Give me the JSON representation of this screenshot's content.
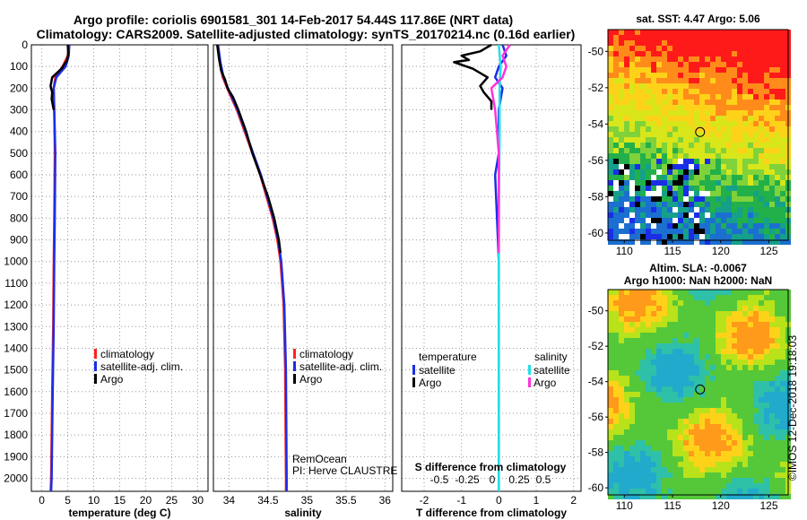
{
  "header": {
    "line1": "Argo profile: coriolis 6901581_301 14-Feb-2017 54.44S 117.86E (NRT data)",
    "line2": "Climatology: CARS2009. Satellite-adjusted climatology: synTS_20170214.nc (0.16d earlier)"
  },
  "colors": {
    "climatology": "#ff2020",
    "satellite": "#1a2ee8",
    "argo": "#000000",
    "sal_satellite": "#22e0e8",
    "sal_argo": "#ff33dd"
  },
  "chart_data": [
    {
      "type": "line",
      "title": "",
      "xlabel": "temperature (deg C)",
      "ylabel": "",
      "xlim": [
        -2,
        32
      ],
      "ylim": [
        2060,
        0
      ],
      "xticks": [
        0,
        5,
        10,
        15,
        20,
        25,
        30
      ],
      "yticks": [
        0,
        100,
        200,
        300,
        400,
        500,
        600,
        700,
        800,
        900,
        1000,
        1100,
        1200,
        1300,
        1400,
        1500,
        1600,
        1700,
        1800,
        1900,
        2000
      ],
      "legend": [
        "climatology",
        "satellite-adj. clim.",
        "Argo"
      ],
      "series": [
        {
          "name": "climatology",
          "color_key": "climatology",
          "points": [
            [
              5.2,
              0
            ],
            [
              5.0,
              50
            ],
            [
              4.0,
              100
            ],
            [
              2.6,
              150
            ],
            [
              2.3,
              200
            ],
            [
              2.4,
              300
            ],
            [
              2.5,
              500
            ],
            [
              2.4,
              800
            ],
            [
              2.3,
              1000
            ],
            [
              2.2,
              1300
            ],
            [
              2.0,
              1600
            ],
            [
              1.8,
              2000
            ],
            [
              1.7,
              2060
            ]
          ]
        },
        {
          "name": "satellite-adj. clim.",
          "color_key": "satellite",
          "points": [
            [
              5.3,
              0
            ],
            [
              5.2,
              50
            ],
            [
              4.6,
              100
            ],
            [
              2.8,
              150
            ],
            [
              2.3,
              200
            ],
            [
              2.4,
              300
            ],
            [
              2.6,
              500
            ],
            [
              2.5,
              800
            ],
            [
              2.4,
              1000
            ],
            [
              2.3,
              1300
            ],
            [
              2.1,
              1600
            ],
            [
              1.9,
              2000
            ],
            [
              1.8,
              2060
            ]
          ]
        },
        {
          "name": "Argo",
          "color_key": "argo",
          "points": [
            [
              5.0,
              0
            ],
            [
              5.1,
              40
            ],
            [
              4.9,
              70
            ],
            [
              3.8,
              110
            ],
            [
              2.0,
              150
            ],
            [
              1.7,
              190
            ],
            [
              2.0,
              220
            ],
            [
              1.9,
              250
            ],
            [
              2.3,
              300
            ]
          ]
        }
      ]
    },
    {
      "type": "line",
      "title": "",
      "xlabel": "salinity",
      "ylabel": "",
      "xlim": [
        33.8,
        36.1
      ],
      "ylim": [
        2060,
        0
      ],
      "xticks": [
        34,
        34.5,
        35,
        35.5,
        36
      ],
      "legend": [
        "climatology",
        "satellite-adj. clim.",
        "Argo"
      ],
      "series": [
        {
          "name": "climatology",
          "color_key": "climatology",
          "points": [
            [
              33.85,
              0
            ],
            [
              33.88,
              80
            ],
            [
              33.92,
              150
            ],
            [
              34.0,
              220
            ],
            [
              34.1,
              300
            ],
            [
              34.2,
              400
            ],
            [
              34.3,
              500
            ],
            [
              34.4,
              600
            ],
            [
              34.48,
              700
            ],
            [
              34.56,
              800
            ],
            [
              34.62,
              900
            ],
            [
              34.66,
              1000
            ],
            [
              34.7,
              1200
            ],
            [
              34.72,
              1500
            ],
            [
              34.73,
              2000
            ],
            [
              34.73,
              2060
            ]
          ]
        },
        {
          "name": "satellite-adj. clim.",
          "color_key": "satellite",
          "points": [
            [
              33.86,
              0
            ],
            [
              33.89,
              80
            ],
            [
              33.93,
              150
            ],
            [
              34.01,
              220
            ],
            [
              34.11,
              300
            ],
            [
              34.21,
              400
            ],
            [
              34.31,
              500
            ],
            [
              34.41,
              600
            ],
            [
              34.49,
              700
            ],
            [
              34.57,
              800
            ],
            [
              34.63,
              900
            ],
            [
              34.67,
              1000
            ],
            [
              34.71,
              1200
            ],
            [
              34.73,
              1500
            ],
            [
              34.74,
              2000
            ],
            [
              34.74,
              2060
            ]
          ]
        },
        {
          "name": "Argo",
          "color_key": "argo",
          "points": [
            [
              33.85,
              0
            ],
            [
              33.87,
              60
            ],
            [
              33.9,
              120
            ],
            [
              33.95,
              160
            ],
            [
              33.98,
              200
            ],
            [
              34.05,
              240
            ],
            [
              34.12,
              300
            ],
            [
              34.22,
              400
            ],
            [
              34.3,
              500
            ],
            [
              34.4,
              600
            ],
            [
              34.5,
              700
            ],
            [
              34.58,
              800
            ],
            [
              34.64,
              900
            ],
            [
              34.66,
              960
            ]
          ]
        }
      ],
      "annotations": [
        "RemOcean",
        "PI: Herve CLAUSTRE"
      ]
    },
    {
      "type": "line",
      "title": "",
      "xlabel": "T difference from climatology",
      "ylabel": "",
      "top_xlabel": "S difference from climatology",
      "xlim": [
        -2.6,
        2.2
      ],
      "ylim": [
        2060,
        0
      ],
      "xticks": [
        -2,
        -1,
        0,
        1,
        2
      ],
      "xticks_top": [
        "-0.5",
        "-0.25",
        "0",
        "0.25",
        "0.5"
      ],
      "legend_left_title": "temperature",
      "legend_right_title": "salinity",
      "legend_left": [
        "satellite",
        "Argo"
      ],
      "legend_right": [
        "satellite",
        "Argo"
      ],
      "series": [
        {
          "name": "T satellite",
          "color_key": "satellite",
          "points": [
            [
              0.1,
              0
            ],
            [
              0.2,
              50
            ],
            [
              0.0,
              100
            ],
            [
              -0.1,
              150
            ],
            [
              0.1,
              200
            ],
            [
              0.0,
              300
            ],
            [
              0.0,
              500
            ],
            [
              -0.1,
              600
            ],
            [
              -0.05,
              800
            ],
            [
              0,
              1000
            ],
            [
              0,
              2060
            ]
          ]
        },
        {
          "name": "T Argo",
          "color_key": "argo",
          "points": [
            [
              -0.2,
              0
            ],
            [
              -0.5,
              30
            ],
            [
              -1.0,
              50
            ],
            [
              -0.8,
              70
            ],
            [
              -1.2,
              80
            ],
            [
              -0.7,
              110
            ],
            [
              -0.3,
              150
            ],
            [
              -0.5,
              190
            ],
            [
              -0.4,
              220
            ],
            [
              -0.2,
              260
            ],
            [
              -0.2,
              300
            ]
          ]
        },
        {
          "name": "S satellite",
          "color_key": "sal_satellite",
          "points": [
            [
              0.0,
              0
            ],
            [
              0.05,
              100
            ],
            [
              0.02,
              200
            ],
            [
              0.02,
              400
            ],
            [
              0.0,
              800
            ],
            [
              0.0,
              1000
            ],
            [
              0.0,
              2060
            ]
          ]
        },
        {
          "name": "S Argo",
          "color_key": "sal_argo",
          "points": [
            [
              0.3,
              0
            ],
            [
              0.1,
              50
            ],
            [
              0.2,
              100
            ],
            [
              0.1,
              150
            ],
            [
              -0.2,
              200
            ],
            [
              -0.1,
              300
            ],
            [
              0.0,
              500
            ],
            [
              0.0,
              800
            ],
            [
              0.0,
              960
            ]
          ]
        }
      ]
    },
    {
      "type": "heatmap",
      "title": "sat. SST: 4.47 Argo: 5.06",
      "xticks": [
        110,
        115,
        120,
        125
      ],
      "yticks": [
        -50,
        -52,
        -54,
        -56,
        -58,
        -60
      ],
      "marker": [
        117.86,
        -54.44
      ]
    },
    {
      "type": "heatmap",
      "title": "Altim. SLA: -0.0067",
      "subtitle": "Argo h1000: NaN h2000: NaN",
      "xticks": [
        110,
        115,
        120,
        125
      ],
      "yticks": [
        -50,
        -52,
        -54,
        -56,
        -58,
        -60
      ],
      "marker": [
        117.86,
        -54.44
      ]
    }
  ],
  "watermark": "©IMOS 12-Dec-2018 19:18:03"
}
